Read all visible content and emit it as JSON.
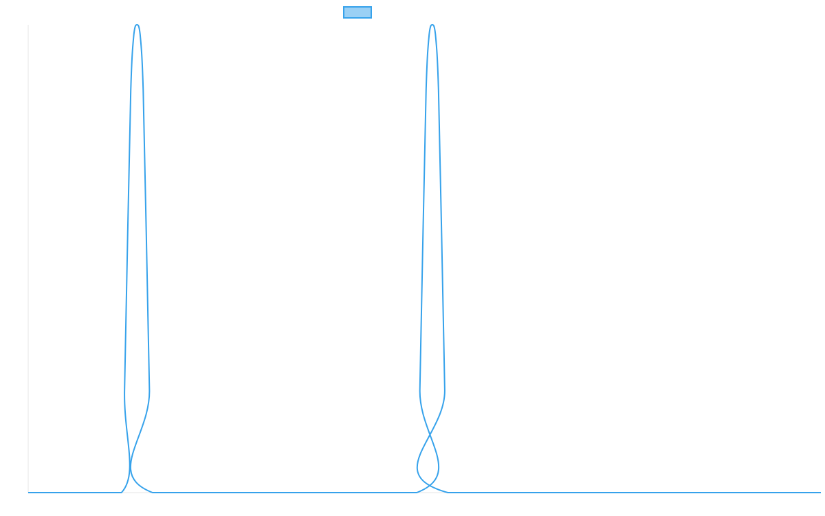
{
  "chart_data": {
    "type": "line",
    "title": "",
    "xlabel": "",
    "ylabel": "",
    "grid": false,
    "legend": "top-center",
    "xlim": [
      0,
      1020
    ],
    "ylim": [
      0,
      1
    ],
    "series": [
      {
        "name": "",
        "color": "#36a2eb",
        "fill_color": "#9ad0f5",
        "x": [
          0,
          120,
          124,
          128,
          132,
          136,
          140,
          144,
          148,
          152,
          156,
          160,
          500,
          504,
          508,
          512,
          516,
          520,
          524,
          528,
          532,
          536,
          540,
          1020
        ],
        "y": [
          0,
          0,
          0.22,
          0.55,
          0.86,
          0.98,
          1.0,
          0.98,
          0.86,
          0.55,
          0.22,
          0,
          0,
          0.22,
          0.55,
          0.86,
          0.98,
          1.0,
          0.98,
          0.86,
          0.55,
          0.22,
          0,
          0
        ]
      }
    ]
  }
}
